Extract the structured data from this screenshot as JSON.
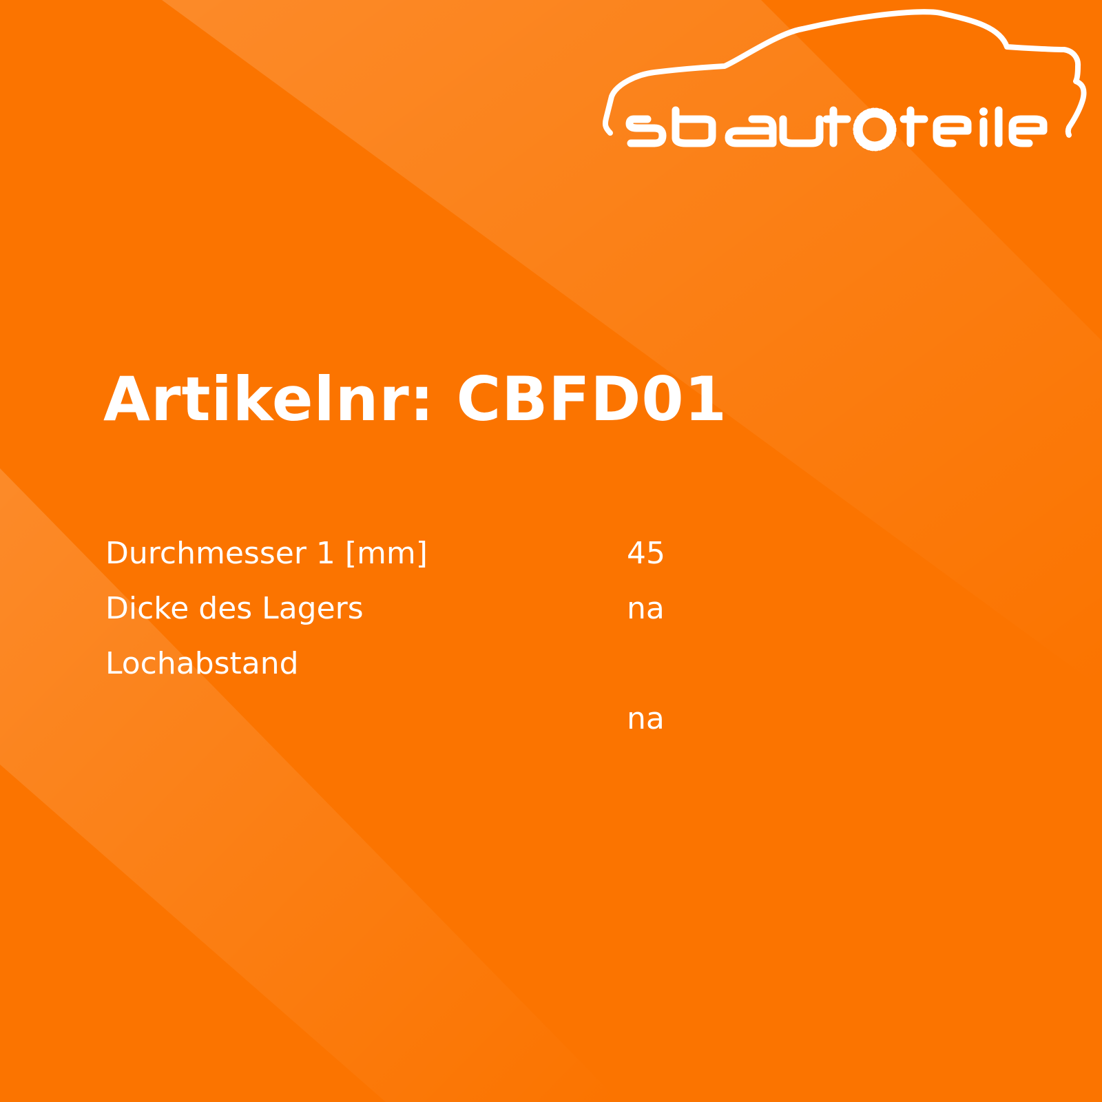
{
  "brand": {
    "logo_text": "sbautoteile",
    "accent": "#fb7400",
    "foreground": "#ffffff"
  },
  "title": "Artikelnr: CBFD01",
  "specs": [
    {
      "label": "Durchmesser 1 [mm]",
      "value": "45"
    },
    {
      "label": "Dicke des Lagers",
      "value": "na"
    },
    {
      "label": "Lochabstand",
      "value": "na"
    }
  ]
}
